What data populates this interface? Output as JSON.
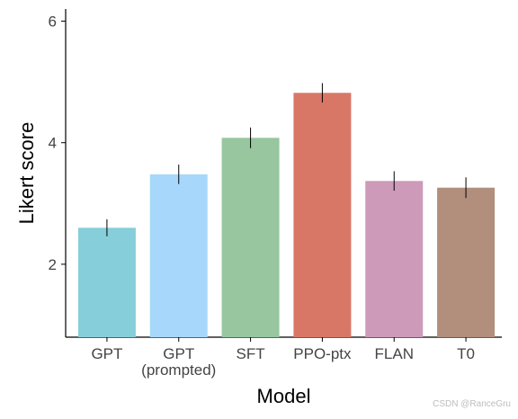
{
  "chart_data": {
    "type": "bar",
    "categories": [
      "GPT",
      "GPT\n(prompted)",
      "SFT",
      "PPO-ptx",
      "FLAN",
      "T0"
    ],
    "values": [
      2.6,
      3.48,
      4.08,
      4.82,
      3.37,
      3.26
    ],
    "error": [
      0.14,
      0.16,
      0.17,
      0.16,
      0.16,
      0.17
    ],
    "colors": [
      "#86ced9",
      "#a7d8fb",
      "#97c69f",
      "#d97766",
      "#cd9ab9",
      "#b28e7d"
    ],
    "title": "",
    "xlabel": "Model",
    "ylabel": "Likert score",
    "ylim": [
      0.8,
      6.2
    ],
    "yticks": [
      2,
      4,
      6
    ],
    "grid": false,
    "legend": "none"
  },
  "watermark": "CSDN @RanceGru"
}
